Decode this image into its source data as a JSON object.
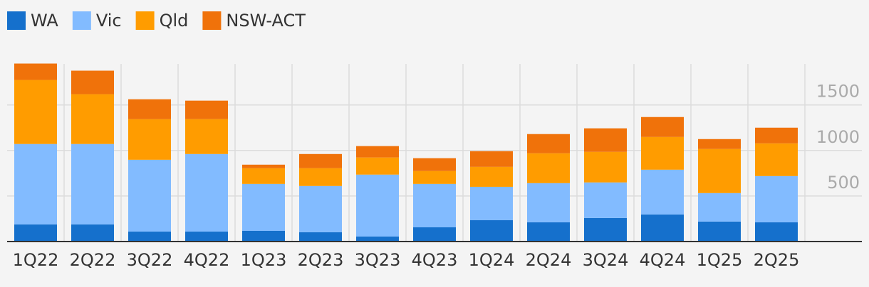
{
  "chart_data": {
    "type": "stacked-bar",
    "categories": [
      "1Q22",
      "2Q22",
      "3Q22",
      "4Q22",
      "1Q23",
      "2Q23",
      "3Q23",
      "4Q23",
      "1Q24",
      "2Q24",
      "3Q24",
      "4Q24",
      "1Q25",
      "2Q25"
    ],
    "series": [
      {
        "name": "WA",
        "color": "#1570cc",
        "values": [
          188,
          188,
          109,
          109,
          117,
          102,
          55,
          156,
          234,
          211,
          258,
          297,
          219,
          211
        ]
      },
      {
        "name": "Vic",
        "color": "#82bbff",
        "values": [
          883,
          883,
          789,
          852,
          516,
          508,
          680,
          477,
          367,
          430,
          391,
          492,
          313,
          508
        ]
      },
      {
        "name": "Qld",
        "color": "#ff9c00",
        "values": [
          703,
          547,
          445,
          383,
          172,
          195,
          188,
          141,
          219,
          328,
          336,
          359,
          484,
          359
        ]
      },
      {
        "name": "NSW-ACT",
        "color": "#f0720a",
        "values": [
          180,
          258,
          219,
          203,
          39,
          156,
          125,
          141,
          172,
          211,
          258,
          219,
          109,
          172
        ]
      }
    ],
    "ylim": [
      0,
      1950
    ],
    "yticks": [
      500,
      1000,
      1500
    ],
    "grid": true
  }
}
